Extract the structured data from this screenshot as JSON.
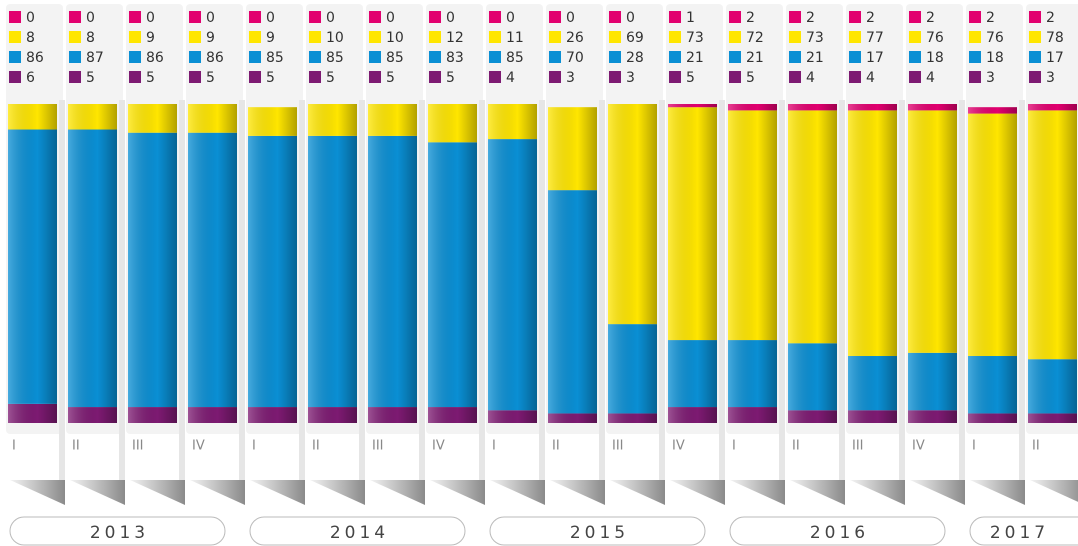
{
  "chart_data": {
    "type": "stacked-bar",
    "categories": [
      "I",
      "II",
      "III",
      "IV",
      "I",
      "II",
      "III",
      "IV",
      "I",
      "II",
      "III",
      "IV",
      "I",
      "II",
      "III",
      "IV",
      "I",
      "II"
    ],
    "years": [
      "2013",
      "2014",
      "2015",
      "2016",
      "2017"
    ],
    "ylim": [
      0,
      100
    ],
    "series": [
      {
        "color": "#e2006f",
        "values": [
          0,
          0,
          0,
          0,
          0,
          0,
          0,
          0,
          0,
          0,
          0,
          1,
          2,
          2,
          2,
          2,
          2,
          2
        ]
      },
      {
        "color": "#ffe600",
        "values": [
          8,
          8,
          9,
          9,
          9,
          10,
          10,
          12,
          11,
          26,
          69,
          73,
          72,
          73,
          77,
          76,
          76,
          78
        ]
      },
      {
        "color": "#0a8fd4",
        "values": [
          86,
          87,
          86,
          86,
          85,
          85,
          85,
          83,
          85,
          70,
          28,
          21,
          21,
          21,
          17,
          18,
          18,
          17
        ]
      },
      {
        "color": "#7d1a72",
        "values": [
          6,
          5,
          5,
          5,
          5,
          5,
          5,
          5,
          4,
          3,
          3,
          5,
          5,
          4,
          4,
          4,
          3,
          3
        ]
      }
    ]
  }
}
